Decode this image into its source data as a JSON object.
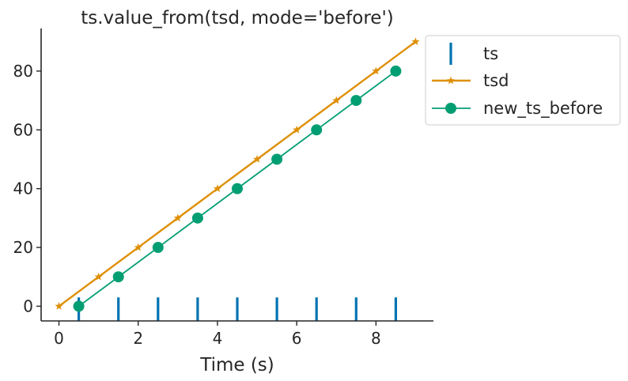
{
  "chart_data": {
    "type": "line",
    "title": "ts.value_from(tsd, mode='before')",
    "xlabel": "Time (s)",
    "ylabel": "",
    "xlim": [
      -0.45,
      9.45
    ],
    "ylim": [
      -5,
      94.5
    ],
    "xticks": [
      0,
      2,
      4,
      6,
      8
    ],
    "yticks": [
      0,
      20,
      40,
      60,
      80
    ],
    "grid": false,
    "legend_position": "outside-top-right",
    "series": [
      {
        "name": "ts",
        "kind": "eventplot",
        "color": "#0173b2",
        "x": [
          0.5,
          1.5,
          2.5,
          3.5,
          4.5,
          5.5,
          6.5,
          7.5,
          8.5
        ]
      },
      {
        "name": "tsd",
        "kind": "line",
        "marker": "star",
        "color": "#de8f05",
        "x": [
          0,
          1,
          2,
          3,
          4,
          5,
          6,
          7,
          8,
          9
        ],
        "y": [
          0,
          10,
          20,
          30,
          40,
          50,
          60,
          70,
          80,
          90
        ]
      },
      {
        "name": "new_ts_before",
        "kind": "line",
        "marker": "circle",
        "color": "#029e73",
        "x": [
          0.5,
          1.5,
          2.5,
          3.5,
          4.5,
          5.5,
          6.5,
          7.5,
          8.5
        ],
        "y": [
          0,
          10,
          20,
          30,
          40,
          50,
          60,
          70,
          80
        ]
      }
    ]
  }
}
